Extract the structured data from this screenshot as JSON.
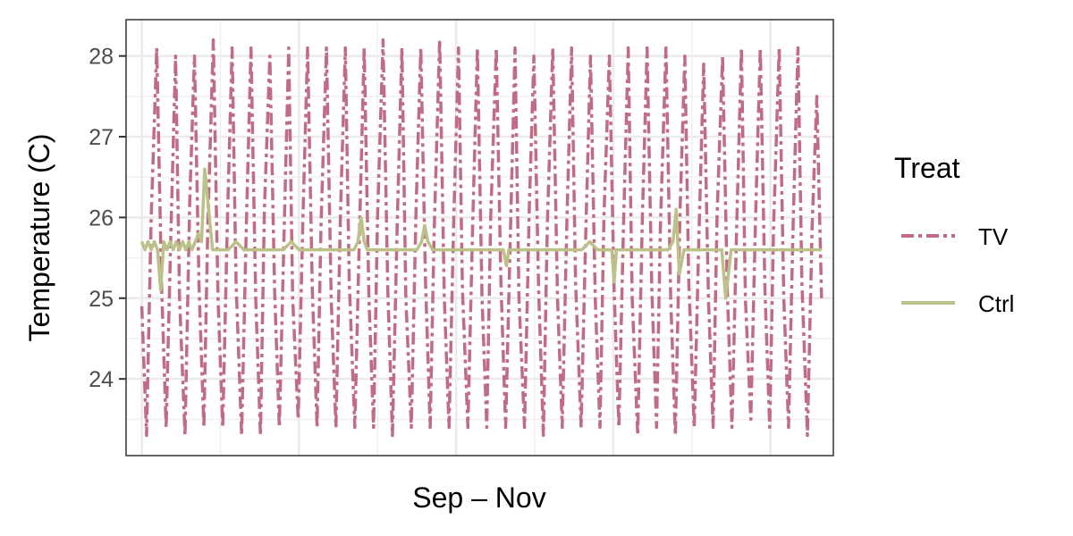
{
  "chart_data": {
    "type": "line",
    "title": "",
    "xlabel": "Sep – Nov",
    "ylabel": "Temperature (C)",
    "ylim": [
      23.05,
      28.45
    ],
    "yticks": [
      24,
      25,
      26,
      27,
      28
    ],
    "yticklabels": [
      "24",
      "25",
      "26",
      "27",
      "28"
    ],
    "grid": true,
    "x_ticks_shown": false,
    "legend": {
      "title": "Treat",
      "placement": "right"
    },
    "series": [
      {
        "name": "TV",
        "color": "#C06C84",
        "dash": "dot-dash",
        "x": [
          0,
          0.6,
          1.2,
          1.9,
          2.5,
          3.1,
          3.7,
          4.3,
          4.8,
          5.5,
          6.1,
          6.7,
          7.3,
          7.9,
          8.4,
          9.1,
          9.7,
          10.3,
          10.9,
          11.5,
          12.0,
          12.7,
          13.3,
          13.9,
          14.5,
          15.1,
          15.6,
          16.3,
          16.9,
          17.5,
          18.1,
          18.7,
          19.2,
          19.9,
          20.5,
          21.1,
          21.7,
          22.3,
          22.8,
          23.5,
          24.1,
          24.7,
          25.3,
          25.9,
          26.4,
          27.1,
          27.7,
          28.3,
          28.9,
          29.5,
          30.0,
          30.7,
          31.3,
          31.9,
          32.5,
          33.1,
          33.6,
          34.3,
          34.9,
          35.5,
          36.1,
          36.7,
          37.2,
          37.9,
          38.5,
          39.1,
          39.7,
          40.3,
          40.8,
          41.5,
          42.1,
          42.7,
          43.3,
          43.9,
          44.4,
          45.1,
          45.7,
          46.3,
          46.9,
          47.5,
          48.0,
          48.7,
          49.3,
          49.9,
          50.5,
          51.1,
          51.6,
          52.3,
          52.9,
          53.5,
          54.1,
          54.7,
          55.2,
          55.9,
          56.5,
          57.1,
          57.7,
          58.3,
          58.8,
          59.5,
          60.1,
          60.7,
          61.3,
          61.9,
          62.4,
          63.1,
          63.7,
          64.3,
          64.9,
          65.5,
          66.0,
          66.7,
          67.3,
          67.9,
          68.5,
          69.1,
          69.6,
          70.3,
          70.9,
          71.5,
          72.1,
          72.7,
          73.2,
          73.9,
          74.5,
          75.1,
          75.7,
          76.3,
          76.8,
          77.5,
          78.1,
          78.7,
          79.3,
          79.9,
          80.4,
          81.1,
          81.7,
          82.3,
          82.9,
          83.5,
          84.0,
          84.7,
          85.3,
          85.9,
          86.5
        ],
        "y": [
          24.9,
          23.3,
          26.0,
          28.1,
          25.2,
          23.4,
          25.8,
          28.0,
          25.0,
          23.3,
          26.2,
          28.0,
          25.1,
          23.4,
          25.9,
          28.2,
          25.0,
          23.4,
          26.0,
          28.1,
          25.2,
          23.3,
          25.9,
          28.1,
          25.0,
          23.3,
          26.1,
          28.0,
          25.1,
          23.4,
          25.8,
          28.1,
          25.0,
          23.5,
          26.0,
          28.1,
          25.1,
          23.4,
          25.9,
          28.1,
          25.0,
          23.4,
          26.1,
          28.1,
          25.2,
          23.4,
          25.8,
          28.1,
          25.0,
          23.4,
          26.0,
          28.2,
          25.1,
          23.3,
          25.9,
          28.1,
          25.0,
          23.4,
          26.1,
          28.1,
          25.2,
          23.4,
          25.8,
          28.2,
          25.0,
          23.4,
          26.0,
          28.1,
          25.1,
          23.4,
          25.9,
          28.1,
          25.0,
          23.4,
          26.0,
          28.1,
          25.2,
          23.4,
          25.8,
          28.1,
          25.0,
          23.4,
          26.1,
          28.0,
          25.1,
          23.3,
          25.9,
          28.1,
          25.0,
          23.4,
          26.0,
          28.1,
          25.2,
          23.4,
          25.8,
          28.0,
          25.0,
          23.4,
          26.0,
          28.0,
          25.1,
          23.4,
          25.9,
          28.1,
          25.0,
          23.3,
          26.0,
          28.1,
          25.1,
          23.4,
          25.9,
          28.1,
          25.0,
          23.3,
          26.1,
          28.0,
          25.2,
          23.4,
          25.8,
          27.9,
          25.0,
          23.4,
          26.0,
          28.0,
          25.1,
          23.4,
          25.9,
          28.1,
          25.0,
          23.5,
          26.0,
          28.1,
          25.1,
          23.4,
          25.9,
          28.1,
          25.0,
          23.4,
          26.0,
          28.1,
          25.2,
          23.3,
          25.9,
          27.5,
          25.0
        ],
        "dasharray": "14,5,4,5"
      },
      {
        "name": "Ctrl",
        "color": "#BCC089",
        "dash": "solid",
        "x": [
          0,
          0.4,
          0.8,
          1.2,
          1.6,
          2.0,
          2.4,
          2.8,
          3.2,
          3.6,
          4.0,
          4.4,
          4.8,
          5.2,
          5.6,
          6.0,
          6.4,
          6.8,
          7.2,
          7.6,
          8.0,
          9.0,
          10.0,
          11.0,
          12.0,
          13.0,
          14.0,
          15.0,
          16.0,
          17.0,
          18.0,
          19.0,
          20.0,
          21.0,
          22.0,
          23.0,
          24.0,
          25.0,
          26.0,
          27.0,
          27.5,
          27.9,
          28.3,
          28.7,
          29.0,
          30.0,
          31.0,
          32.0,
          33.0,
          34.0,
          35.0,
          35.6,
          36.0,
          36.4,
          37.0,
          38.0,
          39.0,
          40.0,
          41.0,
          42.0,
          43.0,
          44.0,
          45.0,
          46.0,
          46.4,
          46.7,
          47.0,
          48.0,
          49.0,
          50.0,
          51.0,
          52.0,
          53.0,
          54.0,
          55.0,
          56.0,
          57.0,
          58.0,
          59.0,
          59.8,
          60.1,
          60.4,
          61.0,
          62.0,
          63.0,
          64.0,
          65.0,
          66.0,
          67.0,
          67.6,
          68.0,
          68.4,
          69.0,
          70.0,
          71.0,
          72.0,
          73.0,
          73.8,
          74.3,
          75.0,
          76.0,
          77.0,
          78.0,
          79.0,
          80.0,
          81.0,
          82.0,
          83.0,
          84.0,
          85.0,
          86.0,
          86.5
        ],
        "y": [
          25.7,
          25.6,
          25.7,
          25.6,
          25.7,
          25.6,
          25.1,
          25.7,
          25.6,
          25.7,
          25.6,
          25.7,
          25.6,
          25.7,
          25.6,
          25.7,
          25.6,
          25.7,
          25.8,
          25.7,
          26.6,
          25.6,
          25.6,
          25.6,
          25.7,
          25.6,
          25.6,
          25.6,
          25.6,
          25.6,
          25.6,
          25.7,
          25.6,
          25.6,
          25.6,
          25.6,
          25.6,
          25.6,
          25.6,
          25.6,
          25.7,
          26.0,
          25.7,
          25.6,
          25.6,
          25.6,
          25.6,
          25.6,
          25.6,
          25.6,
          25.6,
          25.7,
          25.9,
          25.7,
          25.6,
          25.6,
          25.6,
          25.6,
          25.6,
          25.6,
          25.6,
          25.6,
          25.6,
          25.6,
          25.4,
          25.6,
          25.6,
          25.6,
          25.6,
          25.6,
          25.6,
          25.6,
          25.6,
          25.6,
          25.6,
          25.6,
          25.7,
          25.6,
          25.6,
          25.6,
          25.2,
          25.6,
          25.6,
          25.6,
          25.6,
          25.6,
          25.6,
          25.6,
          25.6,
          25.7,
          26.1,
          25.3,
          25.6,
          25.6,
          25.6,
          25.6,
          25.6,
          25.6,
          25.0,
          25.6,
          25.6,
          25.6,
          25.6,
          25.6,
          25.6,
          25.6,
          25.6,
          25.6,
          25.6,
          25.6,
          25.6,
          25.6
        ]
      }
    ]
  }
}
